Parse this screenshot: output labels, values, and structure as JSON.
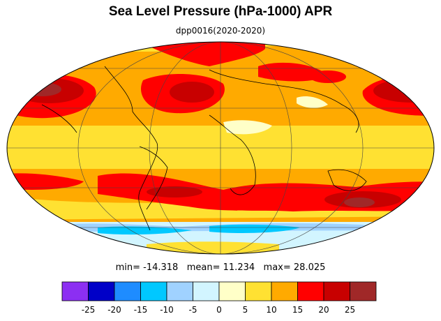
{
  "title": "Sea Level Pressure (hPa-1000) APR",
  "subtitle": "dpp0016(2020-2020)",
  "stats": {
    "min_label": "min=",
    "min_value": "-14.318",
    "mean_label": "mean=",
    "mean_value": "11.234",
    "max_label": "max=",
    "max_value": "28.025"
  },
  "map": {
    "projection": "Mollweide",
    "colors": {
      "below_-25": "#8c2ff2",
      "-25_-20": "#0000c8",
      "-20_-15": "#1e8cff",
      "-15_-10": "#00c8ff",
      "-10_-5": "#a0d2ff",
      "-5_0": "#d2f5ff",
      "0_5": "#ffffc8",
      "5_10": "#ffe132",
      "10_15": "#ffaa00",
      "15_20": "#ff0000",
      "20_25": "#c80000",
      "above_25": "#a02828",
      "coastline": "#000000"
    }
  },
  "colorbar": {
    "ticks": [
      "-25",
      "-20",
      "-15",
      "-10",
      "-5",
      "0",
      "5",
      "10",
      "15",
      "20",
      "25"
    ],
    "colors": [
      "#8c2ff2",
      "#0000c8",
      "#1e8cff",
      "#00c8ff",
      "#a0d2ff",
      "#d2f5ff",
      "#ffffc8",
      "#ffe132",
      "#ffaa00",
      "#ff0000",
      "#c80000",
      "#a02828"
    ]
  }
}
